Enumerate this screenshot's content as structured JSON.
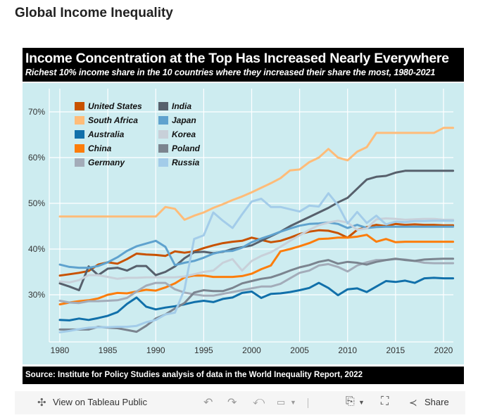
{
  "page": {
    "title": "Global Income Inequality"
  },
  "viz": {
    "title": "Income Concentration at the Top Has Increased Nearly Everywhere",
    "subtitle": "Richest 10% income share in the 10 countries where they increased their share the most, 1980-2021",
    "source": "Source: Institute for Policy Studies analysis of data in the World Inequality Report, 2022"
  },
  "toolbar": {
    "view_label": "View on Tableau Public",
    "share_label": "Share",
    "icons": [
      "tableau-logo-icon",
      "undo-icon",
      "redo-icon",
      "revert-icon",
      "pause-icon",
      "download-icon",
      "fullscreen-icon",
      "share-icon"
    ]
  },
  "chart_data": {
    "type": "line",
    "title": "Income Concentration at the Top Has Increased Nearly Everywhere",
    "subtitle": "Richest 10% income share in the 10 countries where they increased their share the most, 1980-2021",
    "xlabel": "",
    "ylabel": "",
    "x_ticks": [
      1980,
      1985,
      1990,
      1995,
      2000,
      2005,
      2010,
      2015,
      2020
    ],
    "y_ticks": [
      "30%",
      "40%",
      "50%",
      "60%",
      "70%"
    ],
    "y_tick_values": [
      30,
      40,
      50,
      60,
      70
    ],
    "xlim": [
      1979,
      2022
    ],
    "ylim": [
      20,
      73
    ],
    "grid": true,
    "legend_position": "top-left",
    "x": [
      1980,
      1981,
      1982,
      1983,
      1984,
      1985,
      1986,
      1987,
      1988,
      1989,
      1990,
      1991,
      1992,
      1993,
      1994,
      1995,
      1996,
      1997,
      1998,
      1999,
      2000,
      2001,
      2002,
      2003,
      2004,
      2005,
      2006,
      2007,
      2008,
      2009,
      2010,
      2011,
      2012,
      2013,
      2014,
      2015,
      2016,
      2017,
      2018,
      2019,
      2020,
      2021
    ],
    "series": [
      {
        "name": "United States",
        "color": "#c85200",
        "values": [
          34.2,
          34.5,
          34.8,
          35.2,
          36.6,
          37.1,
          36.8,
          37.8,
          39.0,
          38.8,
          38.7,
          38.5,
          39.5,
          39.2,
          39.5,
          40.2,
          40.8,
          41.3,
          41.6,
          41.8,
          42.5,
          42.0,
          41.5,
          41.8,
          42.5,
          43.3,
          43.8,
          44.1,
          44.0,
          43.5,
          42.5,
          44.2,
          44.8,
          45.3,
          45.0,
          45.5,
          45.3,
          45.4,
          45.3,
          45.3,
          45.2,
          45.2
        ]
      },
      {
        "name": "South Africa",
        "color": "#ffbc79",
        "values": [
          47.1,
          47.1,
          47.1,
          47.1,
          47.1,
          47.1,
          47.1,
          47.1,
          47.1,
          47.1,
          47.1,
          49.2,
          48.8,
          46.4,
          47.3,
          48.0,
          49.0,
          49.8,
          50.7,
          51.5,
          52.4,
          53.4,
          54.4,
          55.5,
          57.2,
          57.4,
          59.0,
          60.0,
          61.9,
          60.0,
          59.4,
          61.3,
          62.3,
          65.4,
          65.4,
          65.4,
          65.4,
          65.4,
          65.4,
          65.4,
          66.5,
          66.5
        ]
      },
      {
        "name": "Australia",
        "color": "#1170aa",
        "values": [
          24.5,
          24.4,
          24.8,
          24.5,
          24.9,
          25.4,
          26.2,
          28.0,
          29.4,
          27.4,
          26.8,
          27.2,
          27.5,
          27.9,
          28.4,
          28.7,
          28.4,
          29.1,
          29.4,
          30.4,
          30.7,
          29.3,
          30.2,
          30.3,
          30.6,
          31.0,
          31.5,
          32.6,
          31.5,
          29.9,
          31.2,
          31.4,
          30.6,
          31.8,
          33.0,
          32.8,
          33.1,
          32.6,
          33.6,
          33.7,
          33.6,
          33.6
        ]
      },
      {
        "name": "China",
        "color": "#fc7d0b",
        "values": [
          27.9,
          28.3,
          28.6,
          28.8,
          29.2,
          30.0,
          30.4,
          30.3,
          30.7,
          31.1,
          30.9,
          31.6,
          32.5,
          33.8,
          34.2,
          34.2,
          33.9,
          33.9,
          33.9,
          34.1,
          34.6,
          35.6,
          36.4,
          39.5,
          40.0,
          40.6,
          41.3,
          42.2,
          42.3,
          42.5,
          42.5,
          42.7,
          43.1,
          41.6,
          42.2,
          41.5,
          41.6,
          41.6,
          41.6,
          41.6,
          41.6,
          41.6
        ]
      },
      {
        "name": "Germany",
        "color": "#a3acb9",
        "values": [
          28.7,
          28.3,
          28.2,
          28.6,
          28.6,
          28.7,
          28.8,
          29.3,
          30.7,
          32.0,
          32.6,
          32.6,
          31.2,
          30.5,
          30.1,
          29.8,
          29.8,
          30.2,
          30.6,
          31.0,
          31.4,
          31.8,
          31.8,
          32.4,
          33.6,
          34.8,
          35.3,
          36.4,
          36.7,
          36.1,
          35.1,
          36.4,
          37.1,
          37.6,
          37.6,
          37.8,
          37.7,
          37.4,
          37.0,
          36.9,
          36.9,
          36.9
        ]
      },
      {
        "name": "India",
        "color": "#57606c",
        "values": [
          32.5,
          31.8,
          31.0,
          36.2,
          34.3,
          35.7,
          35.9,
          35.3,
          36.3,
          36.3,
          34.3,
          35.0,
          36.2,
          38.0,
          39.3,
          39.4,
          39.1,
          39.4,
          40.0,
          40.4,
          40.8,
          41.8,
          42.8,
          43.8,
          45.0,
          46.0,
          47.0,
          48.0,
          49.0,
          50.2,
          51.2,
          53.2,
          55.2,
          55.8,
          56.0,
          56.7,
          57.1,
          57.1,
          57.1,
          57.1,
          57.1,
          57.1
        ]
      },
      {
        "name": "Japan",
        "color": "#5fa2ce",
        "values": [
          36.6,
          36.1,
          35.9,
          35.9,
          36.3,
          37.1,
          38.2,
          39.6,
          40.6,
          41.2,
          41.8,
          40.5,
          36.5,
          37.0,
          37.4,
          38.1,
          39.0,
          39.5,
          39.6,
          40.3,
          41.5,
          42.3,
          43.0,
          43.8,
          44.5,
          45.1,
          45.5,
          45.6,
          45.8,
          45.5,
          44.6,
          45.3,
          44.6,
          44.8,
          44.9,
          44.9,
          44.9,
          44.9,
          44.9,
          44.9,
          44.9,
          44.9
        ]
      },
      {
        "name": "Korea",
        "color": "#c8d0d9",
        "values": [
          32.9,
          32.7,
          33.2,
          34.3,
          34.3,
          33.9,
          33.5,
          33.7,
          33.7,
          33.8,
          33.8,
          33.8,
          33.8,
          34.0,
          34.5,
          35.0,
          35.3,
          37.0,
          37.8,
          35.3,
          37.4,
          38.5,
          39.3,
          40.5,
          41.8,
          43.0,
          44.2,
          45.2,
          45.8,
          46.2,
          45.8,
          44.2,
          44.5,
          46.5,
          46.7,
          46.6,
          46.4,
          46.5,
          46.6,
          46.6,
          46.4,
          46.4
        ]
      },
      {
        "name": "Poland",
        "color": "#7b848f",
        "values": [
          22.4,
          22.4,
          22.4,
          22.4,
          23.0,
          22.8,
          22.7,
          22.3,
          21.9,
          23.2,
          24.8,
          25.7,
          27.0,
          28.2,
          30.5,
          31.0,
          30.8,
          30.8,
          31.5,
          32.5,
          33.0,
          33.5,
          33.8,
          34.5,
          35.3,
          36.0,
          36.5,
          37.2,
          37.6,
          36.8,
          37.2,
          37.0,
          36.6,
          37.2,
          37.6,
          37.9,
          37.6,
          37.4,
          37.7,
          37.8,
          37.9,
          37.9
        ]
      },
      {
        "name": "Russia",
        "color": "#a3cce9",
        "values": [
          21.8,
          22.1,
          22.5,
          22.8,
          22.9,
          22.9,
          23.0,
          23.0,
          23.2,
          24.0,
          24.5,
          25.7,
          26.1,
          31.2,
          42.2,
          43.0,
          48.0,
          46.2,
          44.6,
          47.6,
          50.4,
          51.0,
          49.2,
          49.2,
          48.7,
          48.2,
          49.5,
          49.3,
          52.2,
          49.6,
          45.6,
          48.1,
          45.7,
          47.3,
          45.4,
          46.0,
          45.9,
          46.1,
          46.1,
          46.2,
          46.2,
          46.2
        ]
      }
    ]
  }
}
